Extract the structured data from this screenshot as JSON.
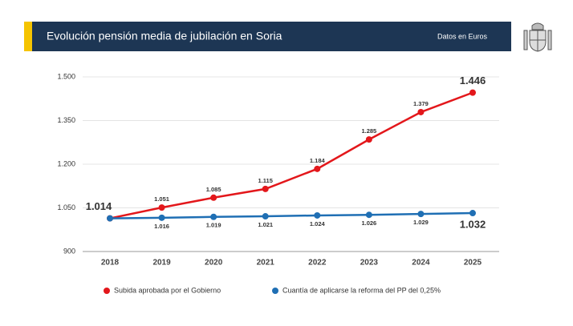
{
  "chart_data": {
    "type": "line",
    "title": "Evolución pensión media de jubilación en Soria",
    "subtitle": "Datos en Euros",
    "categories": [
      "2018",
      "2019",
      "2020",
      "2021",
      "2022",
      "2023",
      "2024",
      "2025"
    ],
    "series": [
      {
        "name": "Subida aprobada por el Gobierno",
        "color": "#e3171b",
        "values": [
          1014,
          1051,
          1085,
          1115,
          1184,
          1285,
          1379,
          1446
        ],
        "value_labels": [
          "1.014",
          "1.051",
          "1.085",
          "1.115",
          "1.184",
          "1.285",
          "1.379",
          "1.446"
        ]
      },
      {
        "name": "Cuantía de aplicarse la reforma del PP del 0,25%",
        "color": "#1f6fb4",
        "values": [
          1014,
          1016,
          1019,
          1021,
          1024,
          1026,
          1029,
          1032
        ],
        "value_labels": [
          null,
          "1.016",
          "1.019",
          "1.021",
          "1.024",
          "1.026",
          "1.029",
          "1.032"
        ]
      }
    ],
    "ylim": [
      900,
      1500
    ],
    "yticks": [
      {
        "value": 900,
        "label": "900"
      },
      {
        "value": 1050,
        "label": "1.050"
      },
      {
        "value": 1200,
        "label": "1.200"
      },
      {
        "value": 1350,
        "label": "1.350"
      },
      {
        "value": 1500,
        "label": "1.500"
      }
    ],
    "grid": true,
    "legend": "bottom"
  }
}
